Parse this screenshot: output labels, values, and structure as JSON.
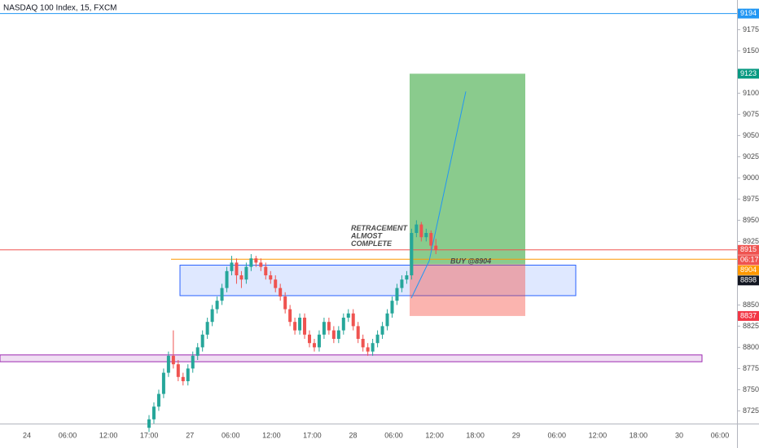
{
  "chart_data": {
    "type": "candlestick",
    "title": "NASDAQ 100 Index, 15, FXCM",
    "ylim": [
      8710,
      9210
    ],
    "yticks": [
      9175,
      9150,
      9100,
      9075,
      9050,
      9025,
      9000,
      8975,
      8950,
      8925,
      8850,
      8825,
      8800,
      8775,
      8750,
      8725
    ],
    "categories": [
      "24",
      "06:00",
      "12:00",
      "17:00",
      "27",
      "06:00",
      "12:00",
      "17:00",
      "28",
      "06:00",
      "12:00",
      "18:00",
      "29",
      "06:00",
      "12:00",
      "18:00",
      "30",
      "06:00"
    ],
    "up_color": "#26a69a",
    "down_color": "#ef5350",
    "candles": [
      [
        8705,
        8720,
        8700,
        8715
      ],
      [
        8715,
        8735,
        8710,
        8730
      ],
      [
        8730,
        8750,
        8725,
        8745
      ],
      [
        8745,
        8775,
        8740,
        8770
      ],
      [
        8770,
        8795,
        8765,
        8790
      ],
      [
        8790,
        8820,
        8775,
        8780
      ],
      [
        8780,
        8785,
        8760,
        8765
      ],
      [
        8765,
        8770,
        8755,
        8760
      ],
      [
        8760,
        8780,
        8755,
        8775
      ],
      [
        8775,
        8795,
        8770,
        8790
      ],
      [
        8790,
        8805,
        8785,
        8800
      ],
      [
        8800,
        8820,
        8795,
        8815
      ],
      [
        8815,
        8835,
        8810,
        8830
      ],
      [
        8830,
        8850,
        8825,
        8845
      ],
      [
        8845,
        8860,
        8840,
        8855
      ],
      [
        8855,
        8875,
        8850,
        8870
      ],
      [
        8870,
        8895,
        8865,
        8890
      ],
      [
        8890,
        8908,
        8885,
        8900
      ],
      [
        8900,
        8905,
        8875,
        8885
      ],
      [
        8885,
        8890,
        8870,
        8880
      ],
      [
        8880,
        8900,
        8875,
        8895
      ],
      [
        8895,
        8910,
        8890,
        8905
      ],
      [
        8905,
        8908,
        8895,
        8900
      ],
      [
        8900,
        8905,
        8890,
        8895
      ],
      [
        8895,
        8900,
        8880,
        8885
      ],
      [
        8885,
        8890,
        8875,
        8880
      ],
      [
        8880,
        8885,
        8865,
        8870
      ],
      [
        8870,
        8875,
        8855,
        8860
      ],
      [
        8860,
        8865,
        8840,
        8845
      ],
      [
        8845,
        8850,
        8825,
        8830
      ],
      [
        8830,
        8835,
        8815,
        8820
      ],
      [
        8820,
        8840,
        8815,
        8835
      ],
      [
        8835,
        8840,
        8810,
        8815
      ],
      [
        8815,
        8820,
        8800,
        8805
      ],
      [
        8805,
        8810,
        8795,
        8800
      ],
      [
        8800,
        8820,
        8795,
        8815
      ],
      [
        8815,
        8835,
        8810,
        8830
      ],
      [
        8830,
        8835,
        8815,
        8820
      ],
      [
        8820,
        8825,
        8805,
        8810
      ],
      [
        8810,
        8825,
        8805,
        8820
      ],
      [
        8820,
        8840,
        8815,
        8835
      ],
      [
        8835,
        8845,
        8830,
        8840
      ],
      [
        8840,
        8845,
        8820,
        8825
      ],
      [
        8825,
        8830,
        8805,
        8810
      ],
      [
        8810,
        8815,
        8795,
        8800
      ],
      [
        8800,
        8805,
        8790,
        8795
      ],
      [
        8795,
        8810,
        8790,
        8805
      ],
      [
        8805,
        8820,
        8800,
        8815
      ],
      [
        8815,
        8830,
        8810,
        8825
      ],
      [
        8825,
        8845,
        8820,
        8840
      ],
      [
        8840,
        8860,
        8835,
        8855
      ],
      [
        8855,
        8875,
        8850,
        8870
      ],
      [
        8870,
        8885,
        8865,
        8880
      ],
      [
        8880,
        8890,
        8875,
        8885
      ],
      [
        8885,
        8940,
        8880,
        8935
      ],
      [
        8935,
        8950,
        8930,
        8945
      ],
      [
        8945,
        8948,
        8925,
        8930
      ],
      [
        8930,
        8940,
        8925,
        8935
      ],
      [
        8935,
        8938,
        8915,
        8920
      ],
      [
        8920,
        8928,
        8910,
        8915
      ]
    ],
    "zones": [
      {
        "low": 8861,
        "high": 8897,
        "color": "#2962ff"
      },
      {
        "low": 8783,
        "high": 8791,
        "color": "#9c27b0"
      }
    ],
    "levels": [
      {
        "value": 9194,
        "color": "#2196f3"
      },
      {
        "value": 8915,
        "color": "#ef5350"
      },
      {
        "value": 8904,
        "color": "#ff9800"
      }
    ],
    "position": {
      "entry": 8898,
      "target": 9123,
      "stop": 8837
    },
    "projection": [
      8858,
      8902,
      9102
    ],
    "annotations": [
      {
        "text": "RETRACEMENT\nALMOST\nCOMPLETE",
        "color": "#2962ff"
      },
      {
        "text": "BUY @8904",
        "color": "#ef5350"
      }
    ],
    "price_labels": [
      {
        "value": 9194,
        "color": "#2196f3"
      },
      {
        "value": 9123,
        "color": "#089981"
      },
      {
        "value": 8915,
        "color": "#ef5350"
      },
      {
        "value": 8904,
        "color": "#ff9800"
      },
      {
        "value": 8898,
        "color": "#131722"
      },
      {
        "value": 8837,
        "color": "#f23645"
      }
    ],
    "countdown": "06:17"
  }
}
